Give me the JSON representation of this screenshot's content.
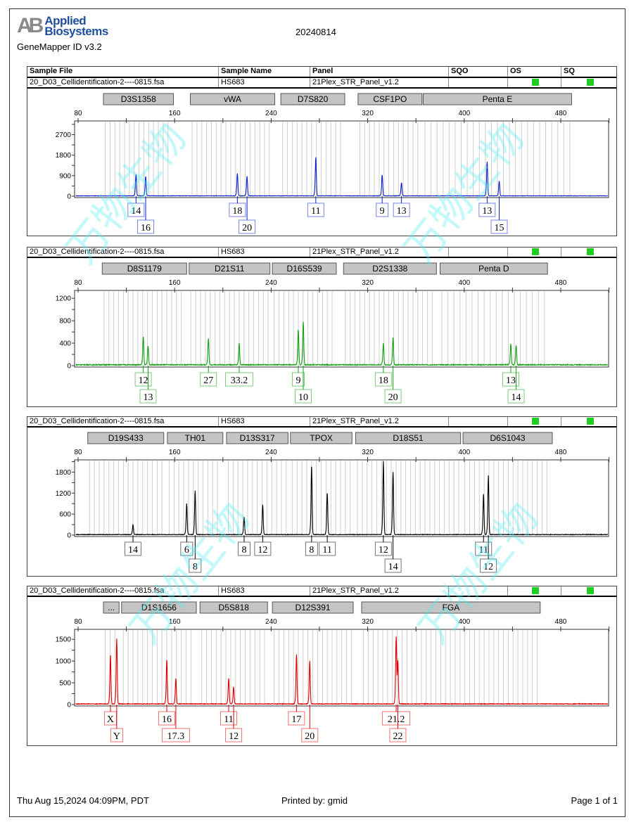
{
  "header": {
    "logo_line1": "Applied",
    "logo_line2": "Biosystems",
    "logo_mark": "AB",
    "app_name": "GeneMapper ID v3.2",
    "title": "20240814"
  },
  "table_header": {
    "sample_file": "Sample File",
    "sample_name": "Sample Name",
    "panel": "Panel",
    "sqo": "SQO",
    "os": "OS",
    "sq": "SQ"
  },
  "colors": {
    "blue": "#0a1fc8",
    "green": "#12a012",
    "black": "#000000",
    "red": "#dd0000",
    "flag": "#22cc22"
  },
  "watermark": "万物生物",
  "panels": [
    {
      "sample_file": "20_D03_Cellidentification-2----0815.fsa",
      "sample_name": "HS683",
      "panel": "21Plex_STR_Panel_v1.2",
      "os_flag": "pass",
      "sq_flag": "pass",
      "dye": "blue",
      "y_ticks": [
        0,
        900,
        1800,
        2700
      ],
      "y_max": 3300,
      "x_ticks": [
        80,
        160,
        240,
        320,
        400,
        480
      ],
      "loci": [
        {
          "name": "D3S1358",
          "start": 101,
          "end": 159
        },
        {
          "name": "vWA",
          "start": 173,
          "end": 243
        },
        {
          "name": "D7S820",
          "start": 248,
          "end": 301
        },
        {
          "name": "CSF1PO",
          "start": 312,
          "end": 365
        },
        {
          "name": "Penta E",
          "start": 366,
          "end": 489
        }
      ],
      "peaks": [
        {
          "allele": "14",
          "size": 128,
          "height": 950
        },
        {
          "allele": "16",
          "size": 136,
          "height": 860
        },
        {
          "allele": "18",
          "size": 212,
          "height": 980
        },
        {
          "allele": "20",
          "size": 220,
          "height": 860
        },
        {
          "allele": "11",
          "size": 277,
          "height": 1690
        },
        {
          "allele": "9",
          "size": 332,
          "height": 920
        },
        {
          "allele": "13",
          "size": 348,
          "height": 580
        },
        {
          "allele": "13",
          "size": 419,
          "height": 1500
        },
        {
          "allele": "15",
          "size": 429,
          "height": 640
        }
      ]
    },
    {
      "sample_file": "20_D03_Cellidentification-2----0815.fsa",
      "sample_name": "HS683",
      "panel": "21Plex_STR_Panel_v1.2",
      "os_flag": "pass",
      "sq_flag": "pass",
      "dye": "green",
      "y_ticks": [
        0,
        400,
        800,
        1200
      ],
      "y_max": 1340,
      "x_ticks": [
        80,
        160,
        240,
        320,
        400,
        480
      ],
      "loci": [
        {
          "name": "D8S1179",
          "start": 100,
          "end": 170
        },
        {
          "name": "D21S11",
          "start": 172,
          "end": 239
        },
        {
          "name": "D16S539",
          "start": 241,
          "end": 294
        },
        {
          "name": "D2S1338",
          "start": 300,
          "end": 377
        },
        {
          "name": "Penta D",
          "start": 380,
          "end": 469
        }
      ],
      "peaks": [
        {
          "allele": "12",
          "size": 134,
          "height": 495
        },
        {
          "allele": "13",
          "size": 138,
          "height": 334
        },
        {
          "allele": "27",
          "size": 188,
          "height": 470
        },
        {
          "allele": "33.2",
          "size": 213.5,
          "height": 383
        },
        {
          "allele": "9",
          "size": 262.5,
          "height": 620
        },
        {
          "allele": "10",
          "size": 266.6,
          "height": 767
        },
        {
          "allele": "18",
          "size": 333,
          "height": 383
        },
        {
          "allele": "20",
          "size": 341,
          "height": 482
        },
        {
          "allele": "13",
          "size": 438.6,
          "height": 371
        },
        {
          "allele": "14",
          "size": 443,
          "height": 346
        }
      ]
    },
    {
      "sample_file": "20_D03_Cellidentification-2----0815.fsa",
      "sample_name": "HS683",
      "panel": "21Plex_STR_Panel_v1.2",
      "os_flag": "pass",
      "sq_flag": "pass",
      "dye": "black",
      "y_ticks": [
        0,
        600,
        1200,
        1800
      ],
      "y_max": 2150,
      "x_ticks": [
        80,
        160,
        240,
        320,
        400,
        480
      ],
      "loci": [
        {
          "name": "D19S433",
          "start": 88,
          "end": 151
        },
        {
          "name": "TH01",
          "start": 154,
          "end": 200
        },
        {
          "name": "D13S317",
          "start": 203,
          "end": 254
        },
        {
          "name": "TPOX",
          "start": 256,
          "end": 307
        },
        {
          "name": "D18S51",
          "start": 310,
          "end": 397
        },
        {
          "name": "D6S1043",
          "start": 399,
          "end": 473
        }
      ],
      "peaks": [
        {
          "allele": "14",
          "size": 125.5,
          "height": 283
        },
        {
          "allele": "6",
          "size": 170,
          "height": 890
        },
        {
          "allele": "8",
          "size": 177,
          "height": 1254
        },
        {
          "allele": "8",
          "size": 217.6,
          "height": 505
        },
        {
          "allele": "12",
          "size": 233,
          "height": 850
        },
        {
          "allele": "8",
          "size": 273.5,
          "height": 1962
        },
        {
          "allele": "11",
          "size": 286.5,
          "height": 1193
        },
        {
          "allele": "12",
          "size": 333,
          "height": 2100
        },
        {
          "allele": "14",
          "size": 341,
          "height": 1780
        },
        {
          "allele": "11",
          "size": 416,
          "height": 1153
        },
        {
          "allele": "12",
          "size": 420,
          "height": 1679
        }
      ]
    },
    {
      "sample_file": "20_D03_Cellidentification-2----0815.fsa",
      "sample_name": "HS683",
      "panel": "21Plex_STR_Panel_v1.2",
      "os_flag": "pass",
      "sq_flag": "pass",
      "dye": "red",
      "y_ticks": [
        0,
        500,
        1000,
        1500
      ],
      "y_max": 1730,
      "x_ticks": [
        80,
        160,
        240,
        320,
        400,
        480
      ],
      "loci": [
        {
          "name": "...",
          "start": 101,
          "end": 114
        },
        {
          "name": "D1S1656",
          "start": 116,
          "end": 178
        },
        {
          "name": "D5S818",
          "start": 181,
          "end": 237
        },
        {
          "name": "D12S391",
          "start": 241,
          "end": 308
        },
        {
          "name": "FGA",
          "start": 315,
          "end": 463
        }
      ],
      "peaks": [
        {
          "allele": "X",
          "size": 106.8,
          "height": 1113
        },
        {
          "allele": "Y",
          "size": 112,
          "height": 1500
        },
        {
          "allele": "16",
          "size": 153.5,
          "height": 1016
        },
        {
          "allele": "17.3",
          "size": 161,
          "height": 581
        },
        {
          "allele": "11",
          "size": 204.8,
          "height": 581
        },
        {
          "allele": "12",
          "size": 208.9,
          "height": 387
        },
        {
          "allele": "17",
          "size": 261,
          "height": 1129
        },
        {
          "allele": "20",
          "size": 272,
          "height": 984
        },
        {
          "allele": "21.2",
          "size": 343.6,
          "height": 1510
        },
        {
          "allele": "22",
          "size": 345,
          "height": 1000
        }
      ]
    }
  ],
  "footer": {
    "datetime": "Thu Aug 15,2024 04:09PM, PDT",
    "printed_by": "Printed by: gmid",
    "page": "Page 1 of 1"
  }
}
